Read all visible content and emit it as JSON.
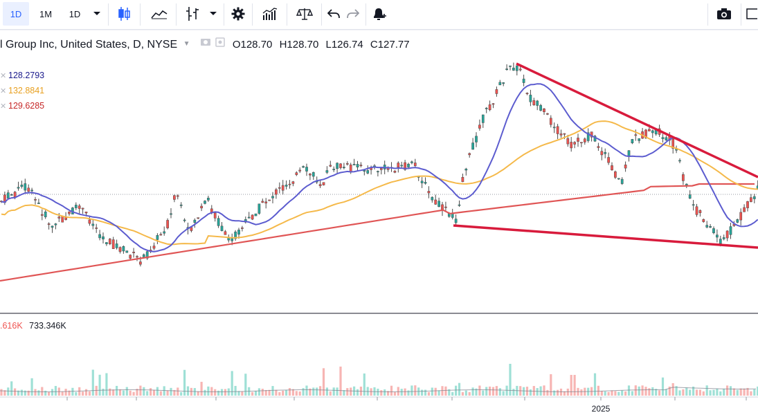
{
  "toolbar": {
    "interval_1d": "1D",
    "range_1m": "1M",
    "interval_dropdown": "1D"
  },
  "legend": {
    "title": "l Group Inc, United States, D, NYSE",
    "open_key": "O",
    "open": "128.70",
    "high_key": "H",
    "high": "128.70",
    "low_key": "L",
    "low": "126.74",
    "close_key": "C",
    "close": "127.77"
  },
  "moving_averages": [
    {
      "value": "128.2793",
      "color": "#1a1a8c"
    },
    {
      "value": "132.8841",
      "color": "#e8a020"
    },
    {
      "value": "129.6285",
      "color": "#c62828"
    }
  ],
  "volume": {
    "ma_value": ".616K",
    "value": "733.346K"
  },
  "time_axis": {
    "year_label": "2025"
  },
  "colors": {
    "up": "#26a69a",
    "down": "#ef5350",
    "ma_fast": "#5c5ccf",
    "ma_mid": "#f5b94a",
    "ma_slow": "#e05555",
    "trendline": "#d81b3c"
  }
}
